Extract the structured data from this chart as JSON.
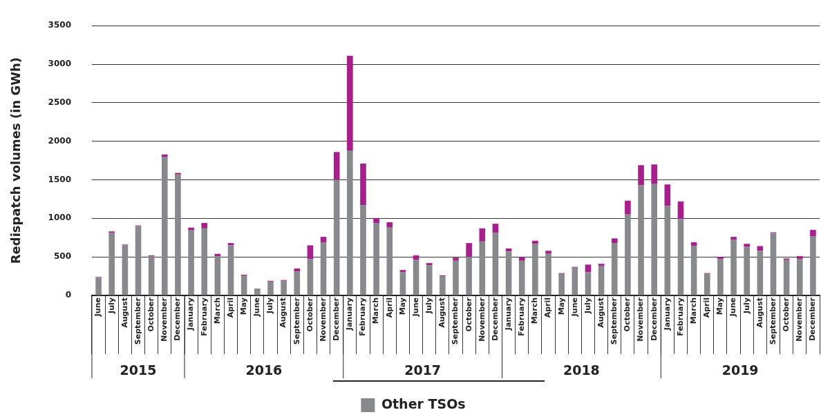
{
  "chart_data": {
    "type": "bar",
    "stacked": true,
    "ylabel": "Redispatch volumes (in GWh)",
    "categories": [
      "June",
      "July",
      "August",
      "September",
      "October",
      "November",
      "December",
      "January",
      "February",
      "March",
      "April",
      "May",
      "June",
      "July",
      "August",
      "September",
      "October",
      "November",
      "December",
      "January",
      "February",
      "March",
      "April",
      "May",
      "June",
      "July",
      "August",
      "September",
      "October",
      "November",
      "December",
      "January",
      "February",
      "March",
      "April",
      "May",
      "June",
      "July",
      "August",
      "September",
      "October",
      "November",
      "December",
      "January",
      "February",
      "March",
      "April",
      "May",
      "June",
      "July",
      "August",
      "September",
      "October",
      "November",
      "December"
    ],
    "series": [
      {
        "name": "Other TSOs",
        "color": "#87898c",
        "values": [
          230,
          810,
          650,
          900,
          510,
          1800,
          1570,
          850,
          870,
          510,
          650,
          260,
          90,
          180,
          190,
          310,
          470,
          690,
          1500,
          1880,
          1170,
          940,
          880,
          300,
          460,
          390,
          250,
          450,
          500,
          700,
          810,
          570,
          450,
          670,
          540,
          280,
          360,
          300,
          380,
          680,
          1050,
          1430,
          1450,
          1160,
          990,
          640,
          280,
          470,
          720,
          630,
          580,
          810,
          460,
          470,
          770
        ]
      },
      {
        "color": "#a81e8c",
        "values": [
          10,
          20,
          10,
          10,
          10,
          30,
          20,
          30,
          70,
          30,
          30,
          10,
          0,
          10,
          10,
          40,
          180,
          70,
          360,
          1230,
          540,
          60,
          70,
          30,
          60,
          30,
          10,
          40,
          180,
          170,
          120,
          40,
          50,
          40,
          40,
          10,
          10,
          100,
          30,
          60,
          180,
          260,
          250,
          280,
          230,
          50,
          10,
          30,
          40,
          40,
          60,
          10,
          20,
          40,
          80
        ]
      }
    ],
    "ylim": [
      0,
      3500
    ],
    "yticks": [
      0,
      500,
      1000,
      1500,
      2000,
      2500,
      3000,
      3500
    ],
    "grid": "y",
    "legend": "bottom",
    "annotations": [
      "2015",
      "2016",
      "2017",
      "2018",
      "2019"
    ]
  }
}
